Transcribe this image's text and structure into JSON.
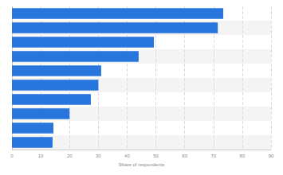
{
  "chart_data": {
    "type": "bar",
    "orientation": "horizontal",
    "categories": [
      null,
      null,
      null,
      null,
      null,
      null,
      null,
      null,
      null,
      null
    ],
    "values": [
      73.4,
      71.5,
      49.3,
      44,
      31,
      30,
      27.4,
      20,
      14.4,
      14.1
    ],
    "color": "#2876dd",
    "x_label": "Share of respondents",
    "xlim": [
      0,
      90
    ],
    "xticks": [
      0,
      10,
      20,
      30,
      40,
      50,
      60,
      70,
      80,
      90
    ],
    "grid": true,
    "tick_labels": "x"
  }
}
